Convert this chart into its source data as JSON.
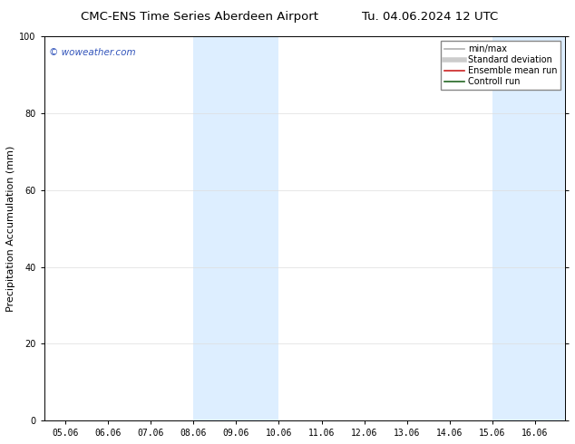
{
  "title_left": "CMC-ENS Time Series Aberdeen Airport",
  "title_right": "Tu. 04.06.2024 12 UTC",
  "ylabel": "Precipitation Accumulation (mm)",
  "xtick_labels": [
    "05.06",
    "06.06",
    "07.06",
    "08.06",
    "09.06",
    "10.06",
    "11.06",
    "12.06",
    "13.06",
    "14.06",
    "15.06",
    "16.06"
  ],
  "ylim": [
    0,
    100
  ],
  "ytick_labels": [
    0,
    20,
    40,
    60,
    80,
    100
  ],
  "shaded_bands": [
    {
      "xmin": 8.0,
      "xmax": 10.0
    },
    {
      "xmin": 15.0,
      "xmax": 17.0
    }
  ],
  "band_color": "#ddeeff",
  "background_color": "#ffffff",
  "watermark_text": "© woweather.com",
  "watermark_color": "#3355bb",
  "legend_items": [
    {
      "label": "min/max",
      "color": "#b0b0b0",
      "lw": 1.2
    },
    {
      "label": "Standard deviation",
      "color": "#cccccc",
      "lw": 4
    },
    {
      "label": "Ensemble mean run",
      "color": "#cc2222",
      "lw": 1.2
    },
    {
      "label": "Controll run",
      "color": "#226622",
      "lw": 1.2
    }
  ],
  "grid_color": "#dddddd",
  "title_fontsize": 9.5,
  "tick_fontsize": 7,
  "ylabel_fontsize": 8,
  "watermark_fontsize": 7.5,
  "legend_fontsize": 7
}
